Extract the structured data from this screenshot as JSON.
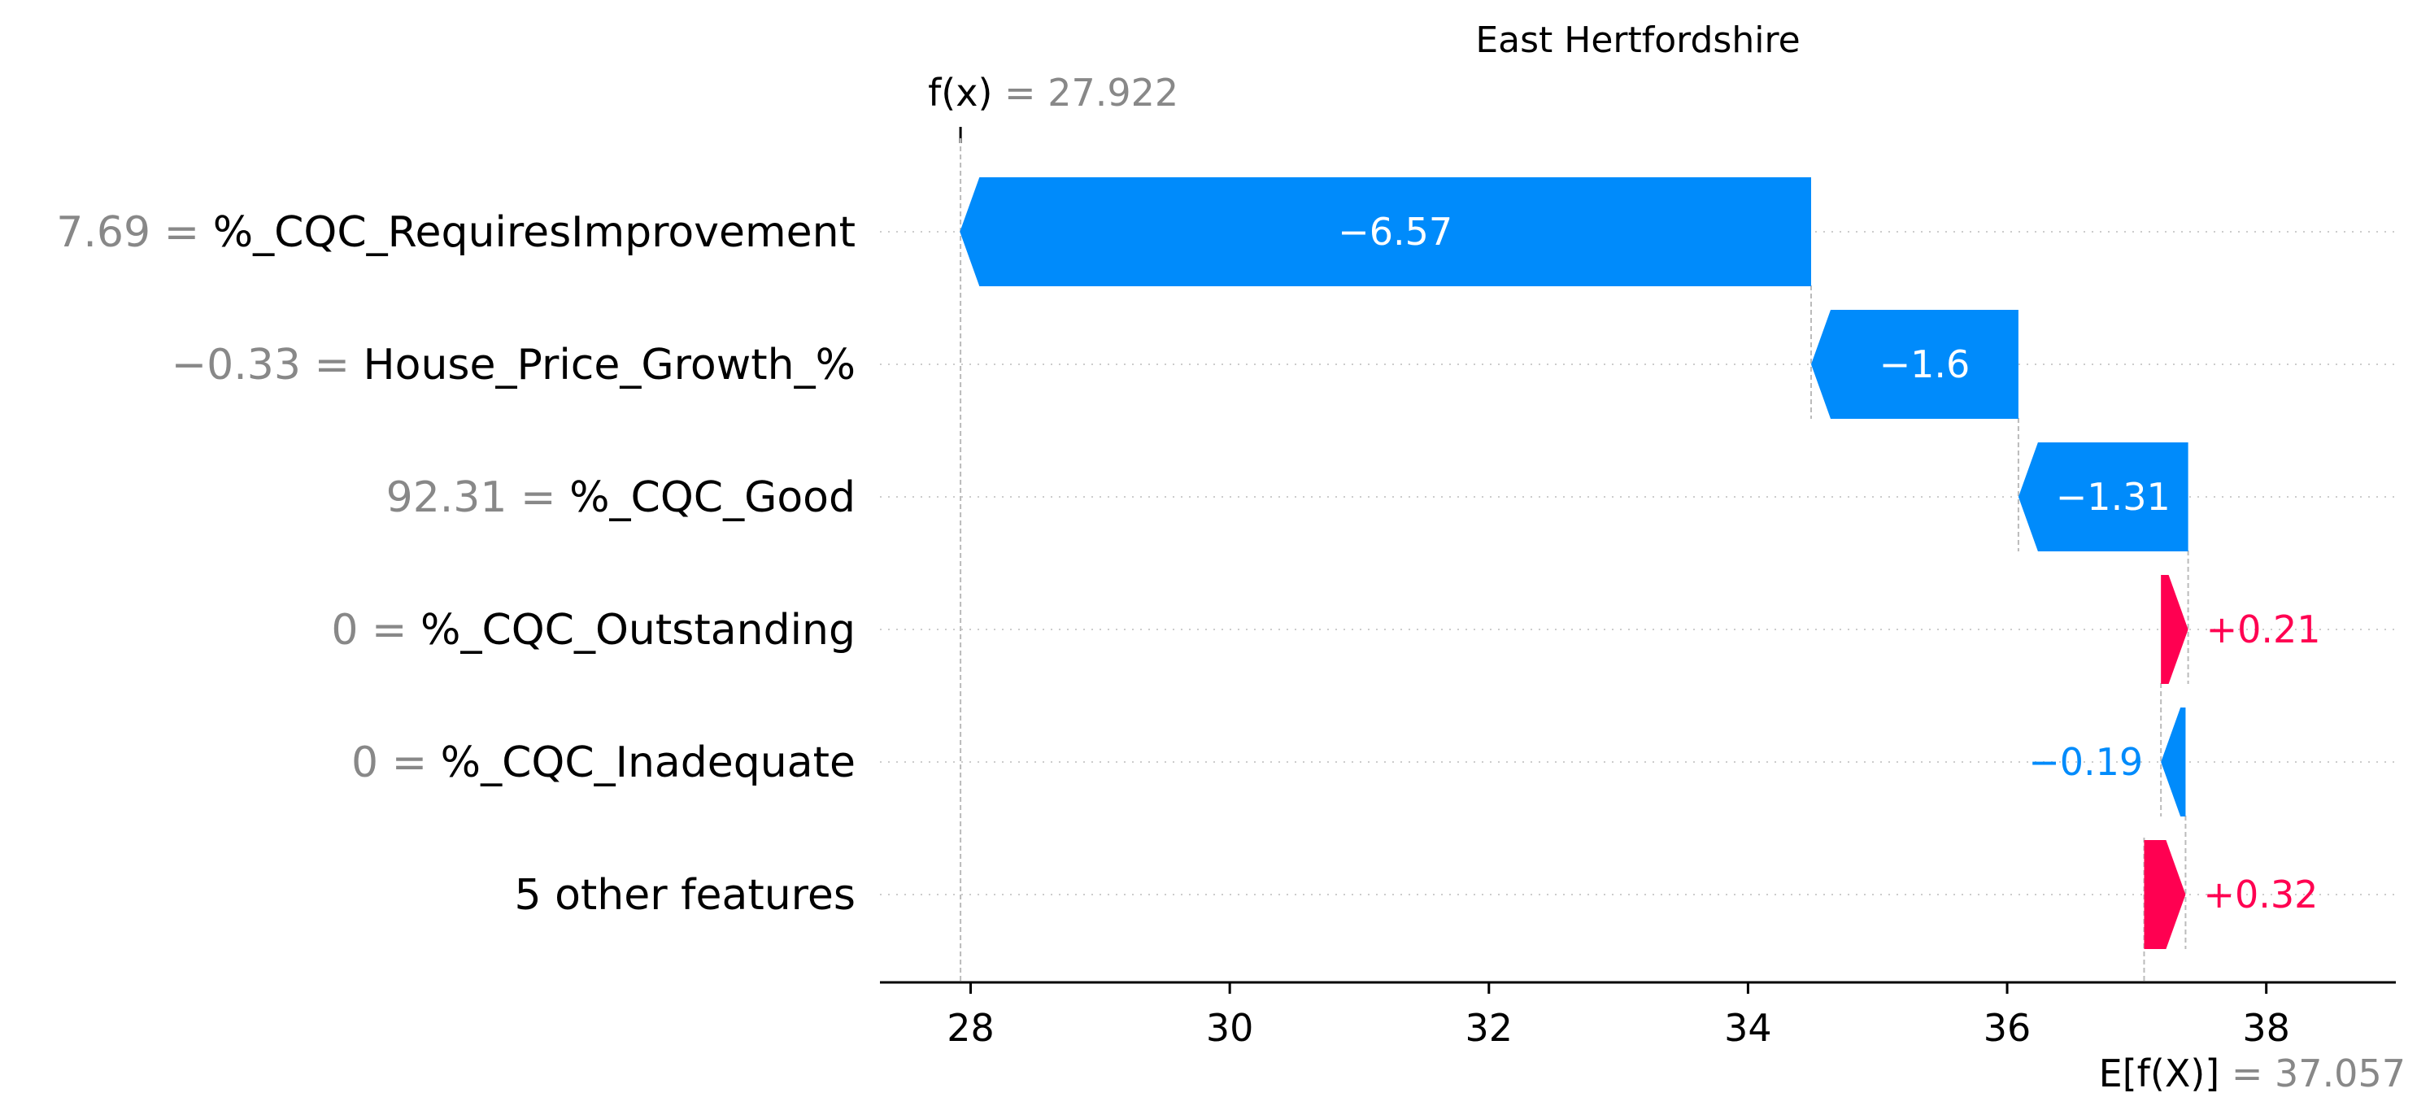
{
  "chart_data": {
    "type": "waterfall",
    "title": "East Hertfordshire",
    "fx_label": "f(x)",
    "fx_value": 27.922,
    "fx_value_text": "27.922",
    "efx_label": "E[f(X)]",
    "efx_value": 37.057,
    "efx_value_text": "37.057",
    "xlim": [
      27.3,
      39.0
    ],
    "xticks": [
      28,
      30,
      32,
      34,
      36,
      38
    ],
    "xtick_labels": [
      "28",
      "30",
      "32",
      "34",
      "36",
      "38"
    ],
    "features": [
      {
        "value_text": "7.69",
        "name": "%_CQC_RequiresImprovement",
        "contribution": -6.57,
        "label": "−6.57"
      },
      {
        "value_text": "−0.33",
        "name": "House_Price_Growth_%",
        "contribution": -1.6,
        "label": "−1.6"
      },
      {
        "value_text": "92.31",
        "name": "%_CQC_Good",
        "contribution": -1.31,
        "label": "−1.31"
      },
      {
        "value_text": "0",
        "name": "%_CQC_Outstanding",
        "contribution": 0.21,
        "label": "+0.21"
      },
      {
        "value_text": "0",
        "name": "%_CQC_Inadequate",
        "contribution": -0.19,
        "label": "−0.19"
      },
      {
        "value_text": "",
        "name": "5 other features",
        "contribution": 0.32,
        "label": "+0.32"
      }
    ],
    "colors": {
      "positive": "#ff0051",
      "negative": "#008bfb",
      "muted": "#888888"
    },
    "grid": "dotted-horizontal"
  }
}
